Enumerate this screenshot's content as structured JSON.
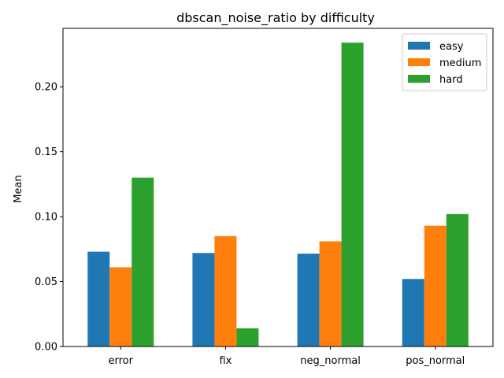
{
  "chart_data": {
    "type": "bar",
    "title": "dbscan_noise_ratio by difficulty",
    "xlabel": "",
    "ylabel": "Mean",
    "categories": [
      "error",
      "fix",
      "neg_normal",
      "pos_normal"
    ],
    "series": [
      {
        "name": "easy",
        "color": "#1f77b4",
        "values": [
          0.073,
          0.072,
          0.0715,
          0.052
        ]
      },
      {
        "name": "medium",
        "color": "#ff7f0e",
        "values": [
          0.061,
          0.085,
          0.081,
          0.093
        ]
      },
      {
        "name": "hard",
        "color": "#2ca02c",
        "values": [
          0.13,
          0.014,
          0.234,
          0.102
        ]
      }
    ],
    "ylim": [
      0,
      0.245
    ],
    "yticks": [
      "0.00",
      "0.05",
      "0.10",
      "0.15",
      "0.20"
    ],
    "grid": false,
    "legend_position": "top-right"
  }
}
